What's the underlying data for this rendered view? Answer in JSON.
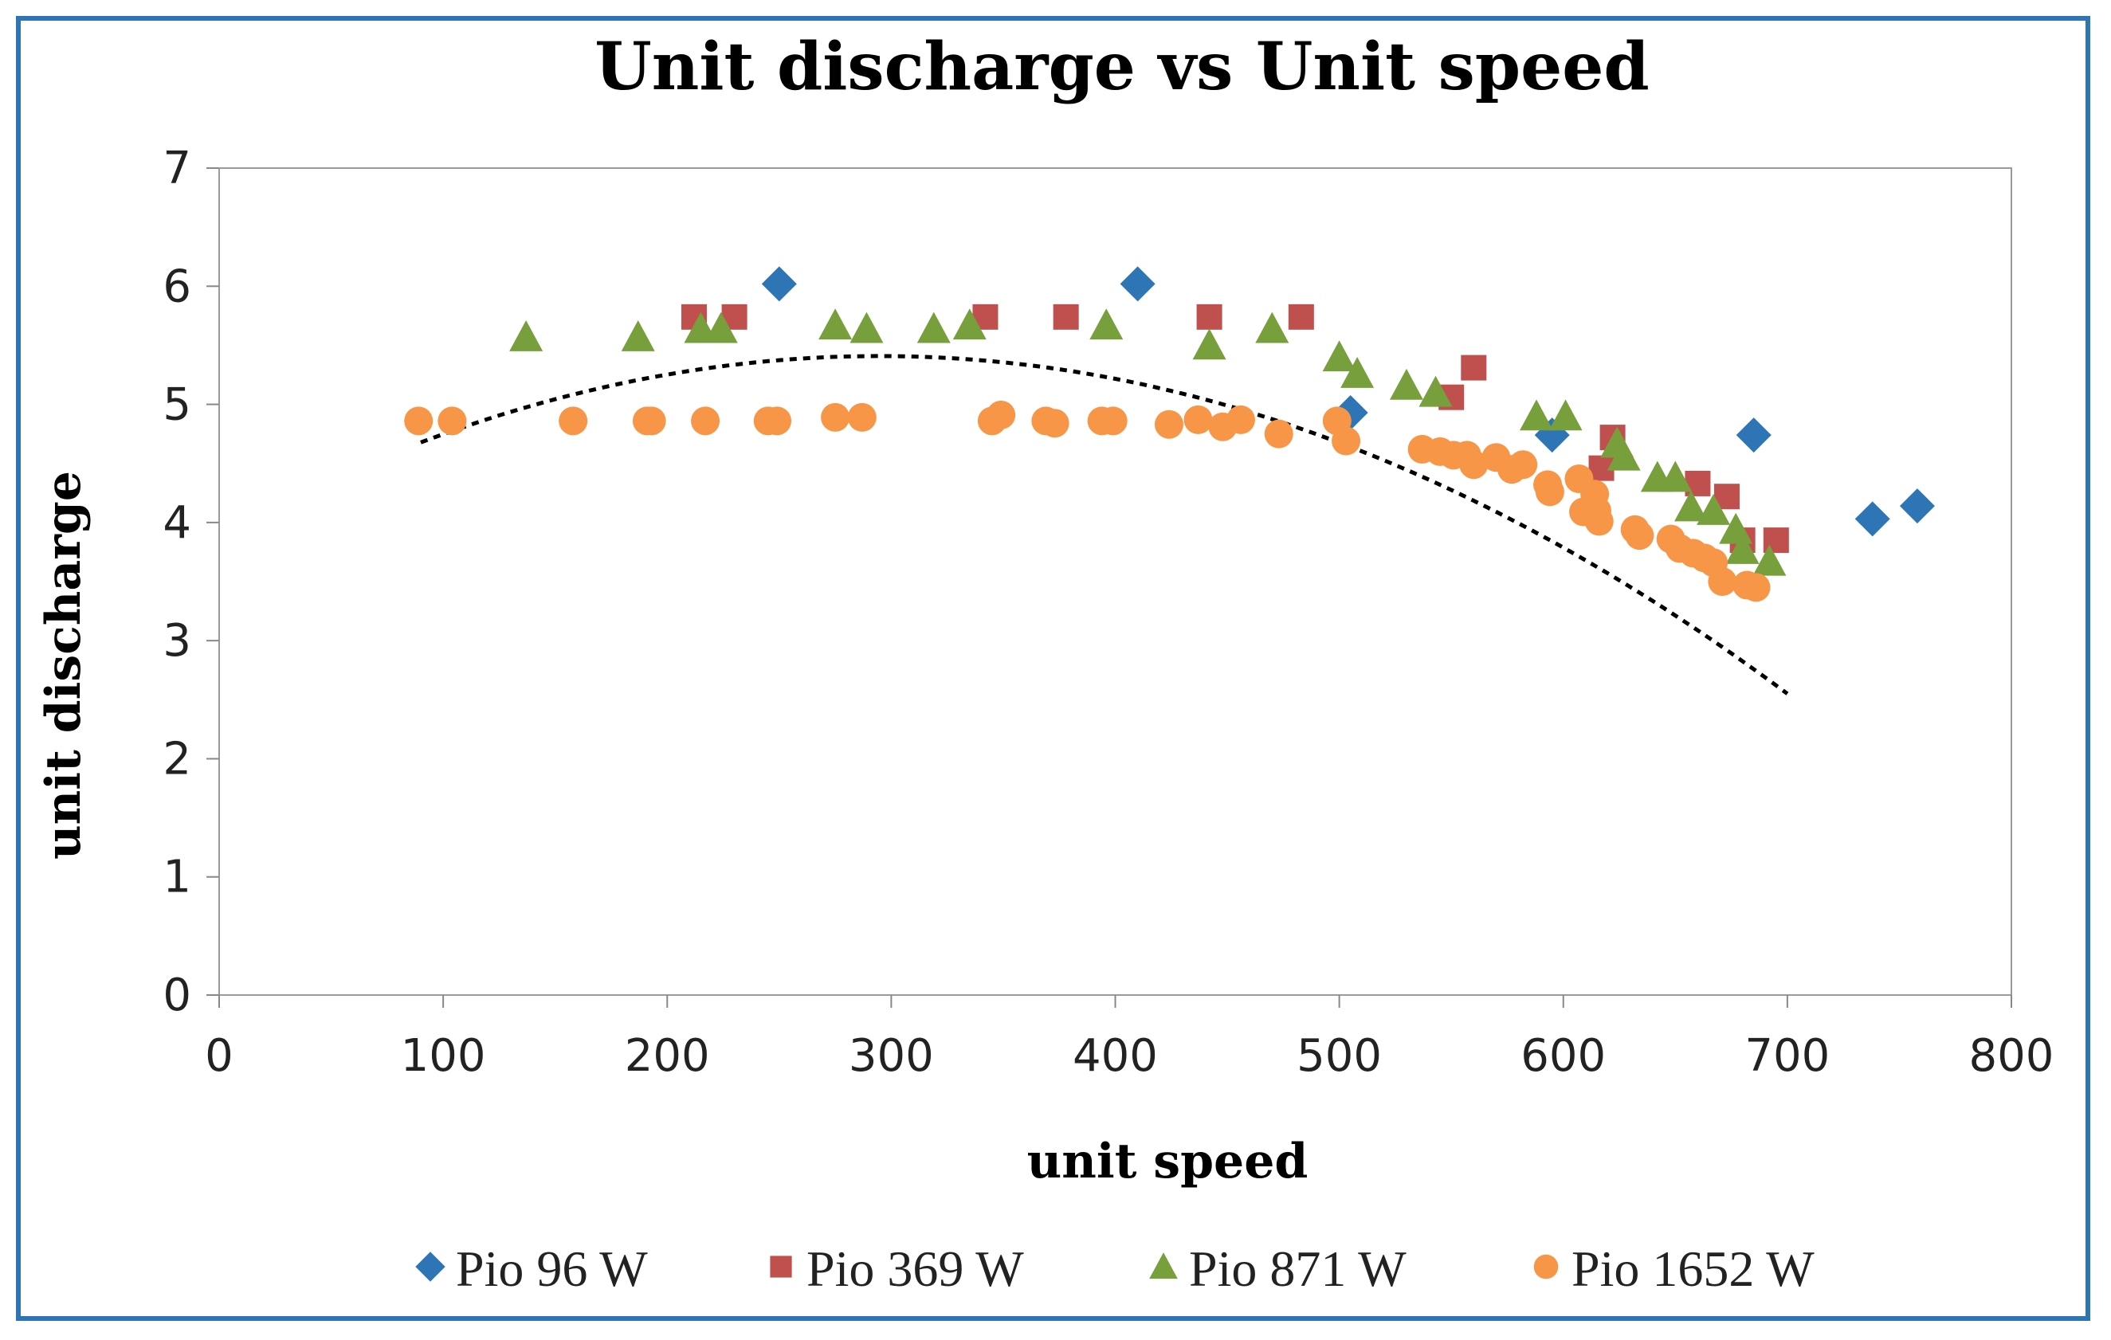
{
  "chart_data": {
    "type": "scatter",
    "title": "Unit discharge vs Unit speed",
    "xlabel": "unit speed",
    "ylabel": "unit discharge",
    "xlim": [
      0,
      800
    ],
    "ylim": [
      0,
      7
    ],
    "xticks": [
      "0",
      "100",
      "200",
      "300",
      "400",
      "500",
      "600",
      "700",
      "800"
    ],
    "yticks": [
      "0",
      "1",
      "2",
      "3",
      "4",
      "5",
      "6",
      "7"
    ],
    "grid": false,
    "legend_position": "bottom",
    "series": [
      {
        "name": "Pio 96 W",
        "marker": "diamond",
        "color": "#2E75B6",
        "points": [
          [
            250,
            6.02
          ],
          [
            410,
            6.02
          ],
          [
            505,
            4.93
          ],
          [
            595,
            4.74
          ],
          [
            685,
            4.74
          ],
          [
            738,
            4.03
          ],
          [
            758,
            4.14
          ]
        ]
      },
      {
        "name": "Pio 369 W",
        "marker": "square",
        "color": "#C0504D",
        "points": [
          [
            212,
            5.74
          ],
          [
            230,
            5.74
          ],
          [
            342,
            5.74
          ],
          [
            378,
            5.74
          ],
          [
            442,
            5.74
          ],
          [
            483,
            5.74
          ],
          [
            550,
            5.06
          ],
          [
            560,
            5.31
          ],
          [
            617,
            4.46
          ],
          [
            622,
            4.72
          ],
          [
            660,
            4.33
          ],
          [
            673,
            4.22
          ],
          [
            680,
            3.85
          ],
          [
            695,
            3.85
          ]
        ]
      },
      {
        "name": "Pio 871 W",
        "marker": "triangle",
        "color": "#77A03C",
        "points": [
          [
            137,
            5.57
          ],
          [
            187,
            5.57
          ],
          [
            215,
            5.64
          ],
          [
            224,
            5.64
          ],
          [
            275,
            5.67
          ],
          [
            289,
            5.64
          ],
          [
            319,
            5.64
          ],
          [
            335,
            5.67
          ],
          [
            396,
            5.67
          ],
          [
            442,
            5.5
          ],
          [
            470,
            5.64
          ],
          [
            500,
            5.4
          ],
          [
            508,
            5.26
          ],
          [
            530,
            5.16
          ],
          [
            543,
            5.1
          ],
          [
            588,
            4.9
          ],
          [
            601,
            4.9
          ],
          [
            624,
            4.67
          ],
          [
            627,
            4.56
          ],
          [
            642,
            4.38
          ],
          [
            650,
            4.38
          ],
          [
            657,
            4.13
          ],
          [
            667,
            4.1
          ],
          [
            677,
            3.94
          ],
          [
            680,
            3.77
          ],
          [
            692,
            3.67
          ]
        ]
      },
      {
        "name": "Pio 1652 W",
        "marker": "circle",
        "color": "#F79646",
        "points": [
          [
            89,
            4.86
          ],
          [
            104,
            4.86
          ],
          [
            158,
            4.86
          ],
          [
            191,
            4.86
          ],
          [
            193,
            4.86
          ],
          [
            217,
            4.86
          ],
          [
            245,
            4.86
          ],
          [
            249,
            4.86
          ],
          [
            275,
            4.89
          ],
          [
            287,
            4.89
          ],
          [
            345,
            4.86
          ],
          [
            349,
            4.91
          ],
          [
            369,
            4.86
          ],
          [
            373,
            4.84
          ],
          [
            394,
            4.86
          ],
          [
            399,
            4.86
          ],
          [
            424,
            4.83
          ],
          [
            437,
            4.87
          ],
          [
            448,
            4.81
          ],
          [
            456,
            4.87
          ],
          [
            473,
            4.75
          ],
          [
            499,
            4.86
          ],
          [
            503,
            4.69
          ],
          [
            537,
            4.62
          ],
          [
            545,
            4.6
          ],
          [
            551,
            4.57
          ],
          [
            557,
            4.57
          ],
          [
            560,
            4.49
          ],
          [
            570,
            4.55
          ],
          [
            577,
            4.45
          ],
          [
            582,
            4.49
          ],
          [
            593,
            4.32
          ],
          [
            594,
            4.26
          ],
          [
            607,
            4.37
          ],
          [
            609,
            4.09
          ],
          [
            614,
            4.24
          ],
          [
            615,
            4.1
          ],
          [
            616,
            4.01
          ],
          [
            632,
            3.94
          ],
          [
            634,
            3.89
          ],
          [
            648,
            3.86
          ],
          [
            652,
            3.78
          ],
          [
            658,
            3.74
          ],
          [
            663,
            3.7
          ],
          [
            667,
            3.66
          ],
          [
            671,
            3.5
          ],
          [
            682,
            3.47
          ],
          [
            686,
            3.45
          ]
        ]
      }
    ],
    "trendline": {
      "style": "dotted polynomial",
      "color": "#000000",
      "x_range": [
        90,
        700
      ],
      "coefficients": [
        3.8947,
        0.010271,
        -1.7416e-05
      ]
    }
  }
}
